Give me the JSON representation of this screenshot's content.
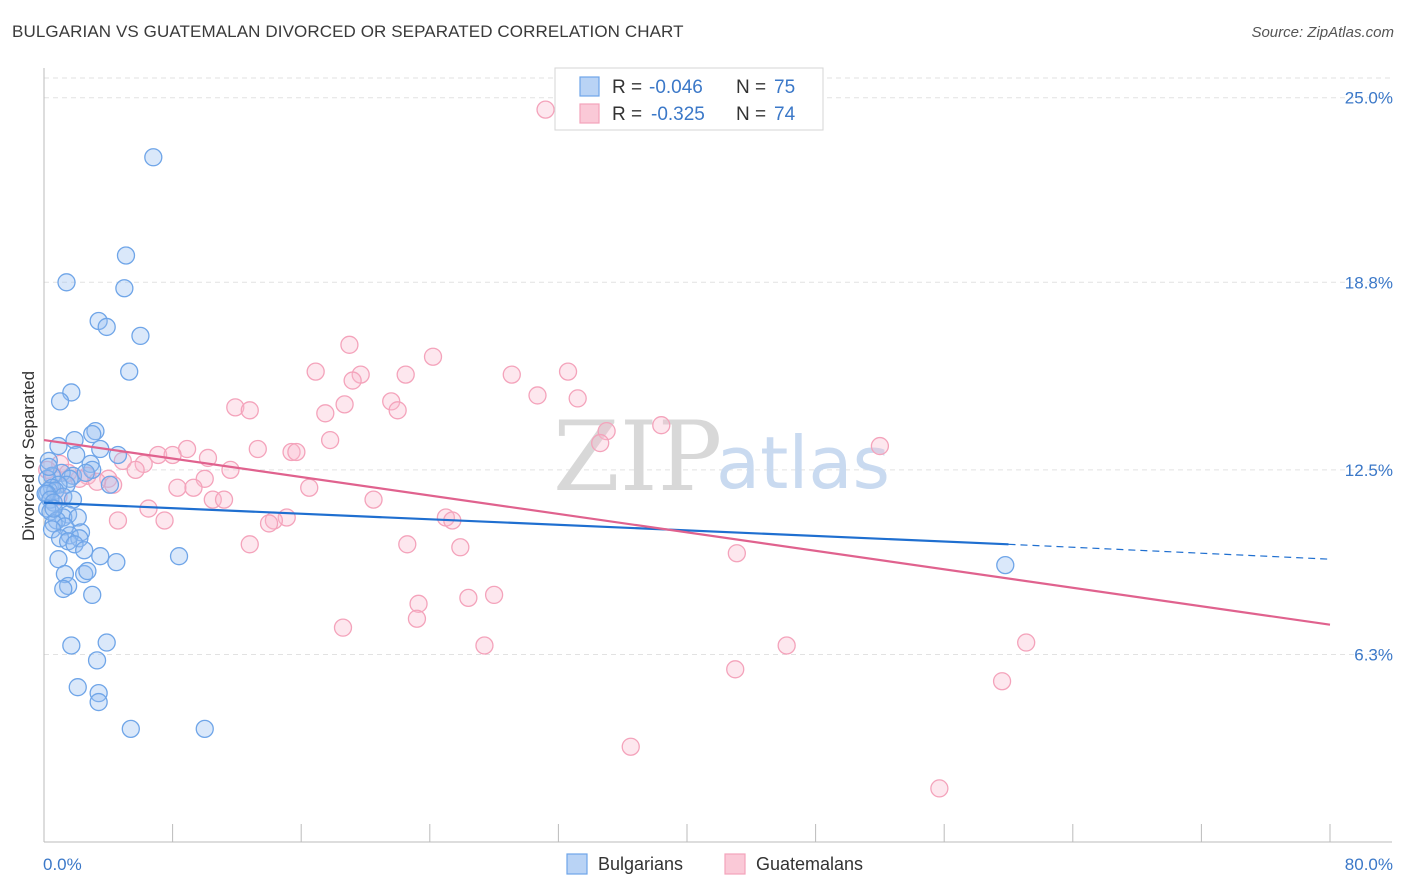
{
  "header": {
    "title": "BULGARIAN VS GUATEMALAN DIVORCED OR SEPARATED CORRELATION CHART",
    "source": "Source: ZipAtlas.com"
  },
  "legend_top": {
    "row1": {
      "r_label": "R =",
      "r_value": "-0.046",
      "n_label": "N =",
      "n_value": "75"
    },
    "row2": {
      "r_label": "R =",
      "r_value": "-0.325",
      "n_label": "N =",
      "n_value": "74"
    }
  },
  "watermark": {
    "zip": "ZIP",
    "atlas": "atlas"
  },
  "chart_data": {
    "type": "scatter",
    "title": "BULGARIAN VS GUATEMALAN DIVORCED OR SEPARATED CORRELATION CHART",
    "xlabel": "",
    "ylabel": "Divorced or Separated",
    "xlim": [
      0,
      80
    ],
    "ylim": [
      0,
      26.2
    ],
    "x_tick_labels": [
      "0.0%",
      "80.0%"
    ],
    "y_ticks": [
      6.3,
      12.5,
      18.8,
      25.0
    ],
    "y_tick_labels": [
      "6.3%",
      "12.5%",
      "18.8%",
      "25.0%"
    ],
    "grid": true,
    "legend_position": "top-center",
    "series": [
      {
        "name": "Bulgarians",
        "color": "#6fa5e8",
        "line_color": "#1f6fd0",
        "r": -0.046,
        "n": 75,
        "trend": {
          "x0": 0,
          "y0": 11.4,
          "x1": 60,
          "y1": 10.0,
          "dash_x1": 80,
          "dash_y1": 9.5
        },
        "points": [
          [
            6.8,
            23.0
          ],
          [
            5.1,
            19.7
          ],
          [
            1.4,
            18.8
          ],
          [
            5.0,
            18.6
          ],
          [
            3.4,
            17.5
          ],
          [
            3.9,
            17.3
          ],
          [
            6.0,
            17.0
          ],
          [
            5.3,
            15.8
          ],
          [
            1.7,
            15.1
          ],
          [
            1.0,
            14.8
          ],
          [
            3.2,
            13.8
          ],
          [
            3.0,
            13.7
          ],
          [
            1.9,
            13.5
          ],
          [
            0.9,
            13.3
          ],
          [
            3.5,
            13.2
          ],
          [
            4.6,
            13.0
          ],
          [
            2.0,
            13.0
          ],
          [
            0.3,
            12.8
          ],
          [
            2.9,
            12.7
          ],
          [
            3.0,
            12.5
          ],
          [
            1.8,
            12.3
          ],
          [
            1.1,
            12.4
          ],
          [
            0.5,
            12.3
          ],
          [
            1.6,
            12.2
          ],
          [
            0.2,
            12.2
          ],
          [
            4.1,
            12.0
          ],
          [
            1.4,
            12.0
          ],
          [
            0.9,
            12.0
          ],
          [
            0.5,
            11.9
          ],
          [
            0.3,
            11.8
          ],
          [
            0.7,
            11.8
          ],
          [
            0.2,
            11.7
          ],
          [
            1.2,
            11.6
          ],
          [
            0.1,
            11.7
          ],
          [
            0.4,
            11.5
          ],
          [
            1.8,
            11.5
          ],
          [
            0.6,
            11.4
          ],
          [
            0.2,
            11.2
          ],
          [
            0.4,
            11.1
          ],
          [
            1.5,
            11.0
          ],
          [
            1.2,
            10.9
          ],
          [
            2.1,
            10.9
          ],
          [
            0.8,
            10.8
          ],
          [
            0.6,
            10.7
          ],
          [
            1.3,
            10.6
          ],
          [
            2.3,
            10.4
          ],
          [
            0.5,
            10.5
          ],
          [
            1.6,
            10.3
          ],
          [
            1.0,
            10.2
          ],
          [
            2.2,
            10.2
          ],
          [
            1.5,
            10.1
          ],
          [
            1.9,
            10.0
          ],
          [
            2.5,
            9.8
          ],
          [
            3.5,
            9.6
          ],
          [
            8.4,
            9.6
          ],
          [
            0.9,
            9.5
          ],
          [
            4.5,
            9.4
          ],
          [
            2.5,
            9.0
          ],
          [
            2.7,
            9.1
          ],
          [
            1.3,
            9.0
          ],
          [
            1.5,
            8.6
          ],
          [
            1.2,
            8.5
          ],
          [
            3.0,
            8.3
          ],
          [
            59.8,
            9.3
          ],
          [
            1.7,
            6.6
          ],
          [
            3.9,
            6.7
          ],
          [
            3.3,
            6.1
          ],
          [
            2.1,
            5.2
          ],
          [
            3.4,
            5.0
          ],
          [
            3.4,
            4.7
          ],
          [
            5.4,
            3.8
          ],
          [
            10.0,
            3.8
          ],
          [
            0.3,
            12.6
          ],
          [
            0.6,
            11.2
          ],
          [
            2.6,
            12.4
          ]
        ]
      },
      {
        "name": "Guatemalans",
        "color": "#f4a3bb",
        "line_color": "#e0628e",
        "r": -0.325,
        "n": 74,
        "trend": {
          "x0": 0,
          "y0": 13.5,
          "x1": 80,
          "y1": 7.3
        },
        "points": [
          [
            31.2,
            24.6
          ],
          [
            19.0,
            16.7
          ],
          [
            24.2,
            16.3
          ],
          [
            16.9,
            15.8
          ],
          [
            19.7,
            15.7
          ],
          [
            22.5,
            15.7
          ],
          [
            29.1,
            15.7
          ],
          [
            32.6,
            15.8
          ],
          [
            19.2,
            15.5
          ],
          [
            21.6,
            14.8
          ],
          [
            18.7,
            14.7
          ],
          [
            30.7,
            15.0
          ],
          [
            33.2,
            14.9
          ],
          [
            11.9,
            14.6
          ],
          [
            12.8,
            14.5
          ],
          [
            17.5,
            14.4
          ],
          [
            22.0,
            14.5
          ],
          [
            38.4,
            14.0
          ],
          [
            35.0,
            13.8
          ],
          [
            17.8,
            13.5
          ],
          [
            34.6,
            13.4
          ],
          [
            52.0,
            13.3
          ],
          [
            8.9,
            13.2
          ],
          [
            13.3,
            13.2
          ],
          [
            15.4,
            13.1
          ],
          [
            15.7,
            13.1
          ],
          [
            7.1,
            13.0
          ],
          [
            8.0,
            13.0
          ],
          [
            10.2,
            12.9
          ],
          [
            4.9,
            12.8
          ],
          [
            6.2,
            12.7
          ],
          [
            1.0,
            12.7
          ],
          [
            0.2,
            12.5
          ],
          [
            5.7,
            12.5
          ],
          [
            11.6,
            12.5
          ],
          [
            10.0,
            12.2
          ],
          [
            2.7,
            12.3
          ],
          [
            4.0,
            12.2
          ],
          [
            2.2,
            12.2
          ],
          [
            4.3,
            12.0
          ],
          [
            8.3,
            11.9
          ],
          [
            9.3,
            11.9
          ],
          [
            16.5,
            11.9
          ],
          [
            10.5,
            11.5
          ],
          [
            11.2,
            11.5
          ],
          [
            6.5,
            11.2
          ],
          [
            15.1,
            10.9
          ],
          [
            14.3,
            10.8
          ],
          [
            25.0,
            10.9
          ],
          [
            4.6,
            10.8
          ],
          [
            7.5,
            10.8
          ],
          [
            14.0,
            10.7
          ],
          [
            25.4,
            10.8
          ],
          [
            12.8,
            10.0
          ],
          [
            22.6,
            10.0
          ],
          [
            25.9,
            9.9
          ],
          [
            43.1,
            9.7
          ],
          [
            26.4,
            8.2
          ],
          [
            28.0,
            8.3
          ],
          [
            23.3,
            8.0
          ],
          [
            23.2,
            7.5
          ],
          [
            18.6,
            7.2
          ],
          [
            27.4,
            6.6
          ],
          [
            46.2,
            6.6
          ],
          [
            61.1,
            6.7
          ],
          [
            43.0,
            5.8
          ],
          [
            59.6,
            5.4
          ],
          [
            36.5,
            3.2
          ],
          [
            55.7,
            1.8
          ],
          [
            0.6,
            12.3
          ],
          [
            1.5,
            12.4
          ],
          [
            3.3,
            12.1
          ],
          [
            0.9,
            11.6
          ],
          [
            20.5,
            11.5
          ]
        ]
      }
    ]
  }
}
